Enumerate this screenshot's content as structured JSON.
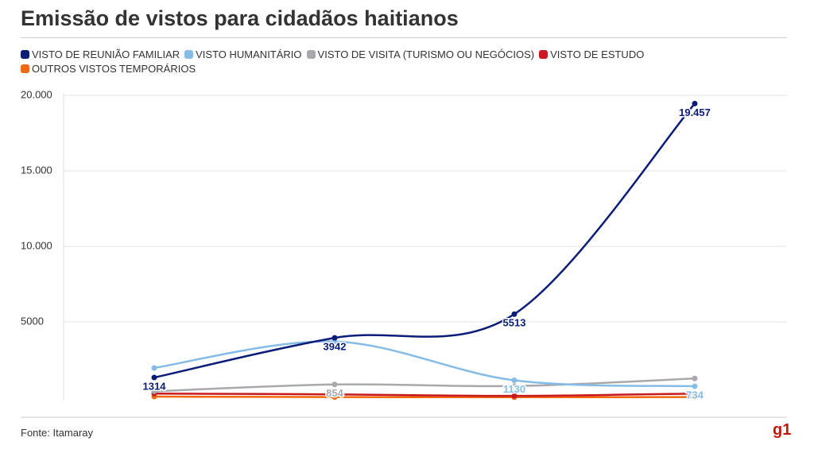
{
  "chart_data": {
    "type": "line",
    "title": "Emissão de vistos para cidadãos haitianos",
    "source": "Fonte: Itamaray",
    "brand": "g1",
    "categories": [
      null,
      null,
      null,
      null
    ],
    "ylim": [
      0,
      20000
    ],
    "yticks": [
      5000,
      {
        "value": 10000,
        "label": "10.000"
      },
      {
        "value": 15000,
        "label": "15.000"
      },
      {
        "value": 20000,
        "label": "20.000"
      }
    ],
    "grid": true,
    "series": [
      {
        "name": "VISTO DE REUNIÃO FAMILIAR",
        "color": "#0b1d78",
        "values": [
          1314,
          3942,
          5513,
          19457
        ],
        "value_labels": [
          "1314",
          "3942",
          "5513",
          "19.457"
        ]
      },
      {
        "name": "VISTO HUMANITÁRIO",
        "color": "#85bce6",
        "values": [
          1950,
          3700,
          1130,
          734
        ],
        "value_labels": [
          null,
          null,
          "1130",
          "734"
        ]
      },
      {
        "name": "VISTO DE VISITA (TURISMO OU NEGÓCIOS)",
        "color": "#a9a9ad",
        "values": [
          400,
          854,
          750,
          1250
        ],
        "value_labels": [
          null,
          "854",
          null,
          null
        ]
      },
      {
        "name": "VISTO DE ESTUDO",
        "color": "#c8191f",
        "values": [
          250,
          200,
          100,
          250
        ]
      },
      {
        "name": "OUTROS VISTOS TEMPORÁRIOS",
        "color": "#f26a10",
        "values": [
          50,
          20,
          10,
          20
        ]
      }
    ]
  }
}
